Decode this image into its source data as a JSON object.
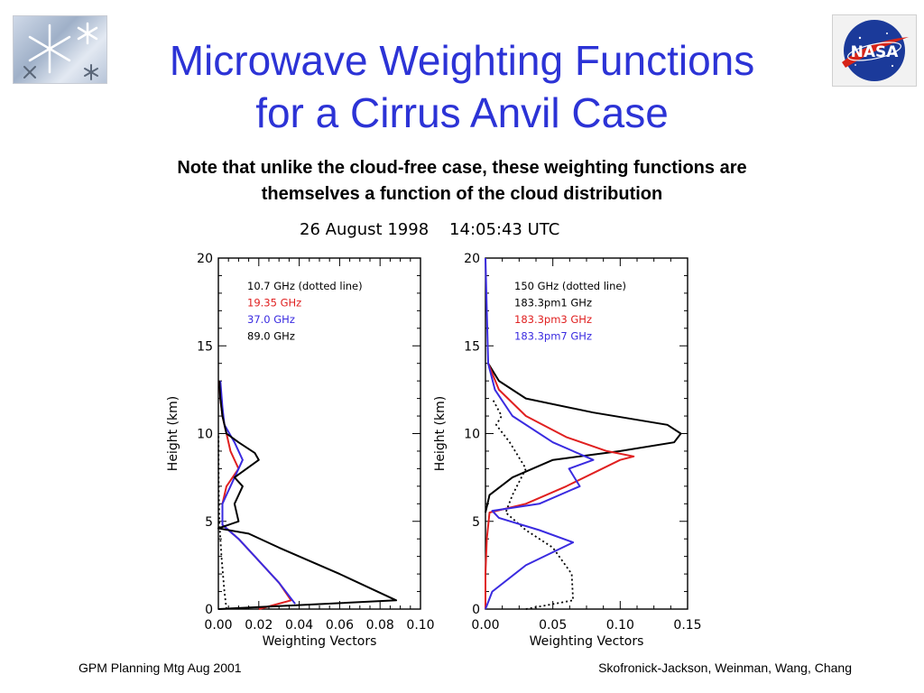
{
  "slide": {
    "title_line1": "Microwave Weighting Functions",
    "title_line2": "for a Cirrus Anvil Case",
    "subtitle_line1": "Note that unlike the cloud-free case, these weighting functions are",
    "subtitle_line2": "themselves a function of the cloud distribution",
    "date_line": "26 August 1998    14:05:43 UTC",
    "footer_left": "GPM Planning Mtg Aug 2001",
    "footer_right": "Skofronick-Jackson, Weinman, Wang, Chang",
    "logo_left_icon": "snowflake-logo",
    "logo_right_icon": "nasa-meatball-logo",
    "nasa_logo_text": "NASA"
  },
  "chart_data": [
    {
      "type": "line",
      "xlabel": "Weighting Vectors",
      "ylabel": "Height (km)",
      "xlim": [
        0,
        0.1
      ],
      "ylim": [
        0,
        20
      ],
      "xticks": [
        "0.00",
        "0.02",
        "0.04",
        "0.06",
        "0.08",
        "0.10"
      ],
      "yticks": [
        "0",
        "5",
        "10",
        "15",
        "20"
      ],
      "legend_position": "top-right",
      "series": [
        {
          "name": "10.7 GHz (dotted line)",
          "color": "#000000",
          "style": "dotted",
          "points": [
            [
              0.004,
              0
            ],
            [
              0.003,
              1
            ],
            [
              0.0015,
              3
            ],
            [
              0.0005,
              5
            ],
            [
              0.0002,
              7
            ],
            [
              0.0001,
              10
            ]
          ]
        },
        {
          "name": "19.35 GHz",
          "color": "#e02020",
          "style": "solid",
          "points": [
            [
              0.02,
              0
            ],
            [
              0.036,
              0.5
            ],
            [
              0.03,
              1.5
            ],
            [
              0.018,
              3
            ],
            [
              0.01,
              4
            ],
            [
              0.002,
              4.8
            ],
            [
              0.002,
              6
            ],
            [
              0.004,
              7
            ],
            [
              0.01,
              8
            ],
            [
              0.006,
              9
            ],
            [
              0.004,
              10
            ],
            [
              0.002,
              11
            ],
            [
              0.001,
              12
            ],
            [
              0.0005,
              13
            ]
          ]
        },
        {
          "name": "37.0 GHz",
          "color": "#3a2be0",
          "style": "solid",
          "points": [
            [
              0.038,
              0.3
            ],
            [
              0.03,
              1.5
            ],
            [
              0.018,
              3
            ],
            [
              0.01,
              4
            ],
            [
              0.002,
              4.8
            ],
            [
              0.002,
              6
            ],
            [
              0.006,
              7
            ],
            [
              0.012,
              8.5
            ],
            [
              0.008,
              9.5
            ],
            [
              0.003,
              10.5
            ],
            [
              0.002,
              11.5
            ],
            [
              0.001,
              13
            ]
          ]
        },
        {
          "name": "89.0 GHz",
          "color": "#000000",
          "style": "solid",
          "points": [
            [
              0.0,
              0
            ],
            [
              0.088,
              0.5
            ],
            [
              0.06,
              2
            ],
            [
              0.03,
              3.5
            ],
            [
              0.015,
              4.3
            ],
            [
              0.0,
              4.6
            ],
            [
              0.01,
              5.0
            ],
            [
              0.008,
              6
            ],
            [
              0.012,
              7
            ],
            [
              0.008,
              7.5
            ],
            [
              0.02,
              8.5
            ],
            [
              0.018,
              8.9
            ],
            [
              0.01,
              9.5
            ],
            [
              0.004,
              10
            ],
            [
              0.002,
              11
            ],
            [
              0.001,
              12
            ],
            [
              0.0005,
              13
            ]
          ]
        }
      ]
    },
    {
      "type": "line",
      "xlabel": "Weighting Vectors",
      "ylabel": "Height (km)",
      "xlim": [
        0,
        0.15
      ],
      "ylim": [
        0,
        20
      ],
      "xticks": [
        "0.00",
        "0.05",
        "0.10",
        "0.15"
      ],
      "yticks": [
        "0",
        "5",
        "10",
        "15",
        "20"
      ],
      "legend_position": "top-right",
      "series": [
        {
          "name": "150 GHz (dotted line)",
          "color": "#000000",
          "style": "dotted",
          "points": [
            [
              0.03,
              0
            ],
            [
              0.065,
              0.5
            ],
            [
              0.064,
              2
            ],
            [
              0.05,
              3.5
            ],
            [
              0.03,
              4.5
            ],
            [
              0.015,
              5.5
            ],
            [
              0.02,
              6.5
            ],
            [
              0.03,
              8
            ],
            [
              0.018,
              9.5
            ],
            [
              0.008,
              10.5
            ],
            [
              0.012,
              11
            ],
            [
              0.005,
              12
            ]
          ]
        },
        {
          "name": "183.3pm1 GHz",
          "color": "#000000",
          "style": "solid",
          "points": [
            [
              0.0,
              5.5
            ],
            [
              0.003,
              6.5
            ],
            [
              0.02,
              7.5
            ],
            [
              0.05,
              8.5
            ],
            [
              0.1,
              9
            ],
            [
              0.14,
              9.5
            ],
            [
              0.145,
              10
            ],
            [
              0.135,
              10.5
            ],
            [
              0.08,
              11.2
            ],
            [
              0.03,
              12
            ],
            [
              0.01,
              13
            ],
            [
              0.002,
              14
            ]
          ]
        },
        {
          "name": "183.3pm3 GHz",
          "color": "#e02020",
          "style": "solid",
          "points": [
            [
              0.0,
              0
            ],
            [
              0.0,
              2
            ],
            [
              0.001,
              4
            ],
            [
              0.003,
              5.5
            ],
            [
              0.03,
              6
            ],
            [
              0.06,
              7
            ],
            [
              0.1,
              8.5
            ],
            [
              0.11,
              8.7
            ],
            [
              0.09,
              9
            ],
            [
              0.06,
              9.8
            ],
            [
              0.03,
              11
            ],
            [
              0.01,
              12.5
            ],
            [
              0.002,
              14
            ]
          ]
        },
        {
          "name": "183.3pm7 GHz",
          "color": "#3a2be0",
          "style": "solid",
          "points": [
            [
              0.0,
              0
            ],
            [
              0.005,
              1
            ],
            [
              0.03,
              2.5
            ],
            [
              0.065,
              3.8
            ],
            [
              0.04,
              4.5
            ],
            [
              0.01,
              5.2
            ],
            [
              0.005,
              5.6
            ],
            [
              0.04,
              6
            ],
            [
              0.07,
              7
            ],
            [
              0.062,
              8
            ],
            [
              0.08,
              8.5
            ],
            [
              0.05,
              9.5
            ],
            [
              0.02,
              11
            ],
            [
              0.007,
              12.5
            ],
            [
              0.002,
              14
            ],
            [
              0.0,
              20
            ]
          ]
        }
      ]
    }
  ]
}
